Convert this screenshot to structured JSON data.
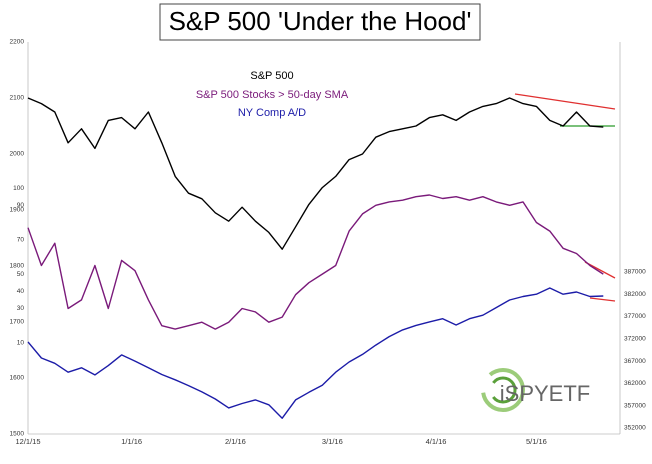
{
  "chart_data": {
    "type": "line",
    "title": "S&P 500 'Under the Hood'",
    "logo": "iSPYETF",
    "x": [
      0,
      4,
      8,
      12,
      16,
      20,
      24,
      28,
      32,
      36,
      40,
      44,
      48,
      52,
      56,
      60,
      64,
      68,
      72,
      76,
      80,
      84,
      88,
      92,
      96,
      100,
      104,
      108,
      112,
      116,
      120,
      124,
      128,
      132,
      136,
      140,
      144,
      148,
      152,
      156,
      160,
      164,
      168,
      172
    ],
    "xlim": [
      0,
      177
    ],
    "xticks": [
      {
        "value": 0,
        "label": "12/1/15"
      },
      {
        "value": 31,
        "label": "1/1/16"
      },
      {
        "value": 62,
        "label": "2/1/16"
      },
      {
        "value": 91,
        "label": "3/1/16"
      },
      {
        "value": 122,
        "label": "4/1/16"
      },
      {
        "value": 152,
        "label": "5/1/16"
      }
    ],
    "ylim": [
      1500,
      2200
    ],
    "yticks": [
      1500,
      1600,
      1700,
      1800,
      1900,
      2000,
      2100,
      2200
    ],
    "y3lim": [
      -43,
      185
    ],
    "y3ticks": [
      10,
      30,
      40,
      50,
      70,
      90,
      100
    ],
    "y2lim": [
      350650,
      438570
    ],
    "y2ticks": [
      352000,
      357000,
      362000,
      367000,
      372000,
      377000,
      382000,
      387000
    ],
    "grid": false,
    "series": [
      {
        "name": "S&P 500",
        "color": "#000000",
        "axis": "y",
        "values": [
          2100,
          2090,
          2075,
          2020,
          2045,
          2010,
          2060,
          2065,
          2045,
          2075,
          2020,
          1960,
          1930,
          1920,
          1895,
          1880,
          1905,
          1880,
          1860,
          1830,
          1870,
          1910,
          1940,
          1960,
          1990,
          2000,
          2030,
          2040,
          2045,
          2050,
          2065,
          2070,
          2060,
          2075,
          2085,
          2090,
          2100,
          2090,
          2085,
          2060,
          2050,
          2075,
          2050,
          2048
        ]
      },
      {
        "name": "S&P 500 Stocks > 50-day SMA",
        "color": "#7a1a7a",
        "axis": "y3",
        "values": [
          77,
          55,
          68,
          30,
          35,
          55,
          30,
          58,
          52,
          35,
          20,
          18,
          20,
          22,
          18,
          22,
          30,
          28,
          22,
          25,
          38,
          45,
          50,
          55,
          75,
          85,
          90,
          92,
          93,
          95,
          96,
          94,
          95,
          93,
          95,
          92,
          90,
          92,
          80,
          75,
          65,
          62,
          55,
          50
        ]
      },
      {
        "name": "NY Comp A/D",
        "color": "#1c1ca8",
        "axis": "y2",
        "values": [
          371300,
          367700,
          366500,
          364500,
          365500,
          363900,
          366000,
          368400,
          367000,
          365500,
          364000,
          362800,
          361500,
          360100,
          358500,
          356500,
          357500,
          358300,
          357200,
          354200,
          358300,
          360000,
          361600,
          364500,
          366800,
          368500,
          370600,
          372500,
          374000,
          375000,
          375800,
          376500,
          375100,
          376500,
          377300,
          379000,
          380700,
          381500,
          382000,
          383400,
          382000,
          382500,
          381500,
          381600
        ]
      }
    ]
  }
}
